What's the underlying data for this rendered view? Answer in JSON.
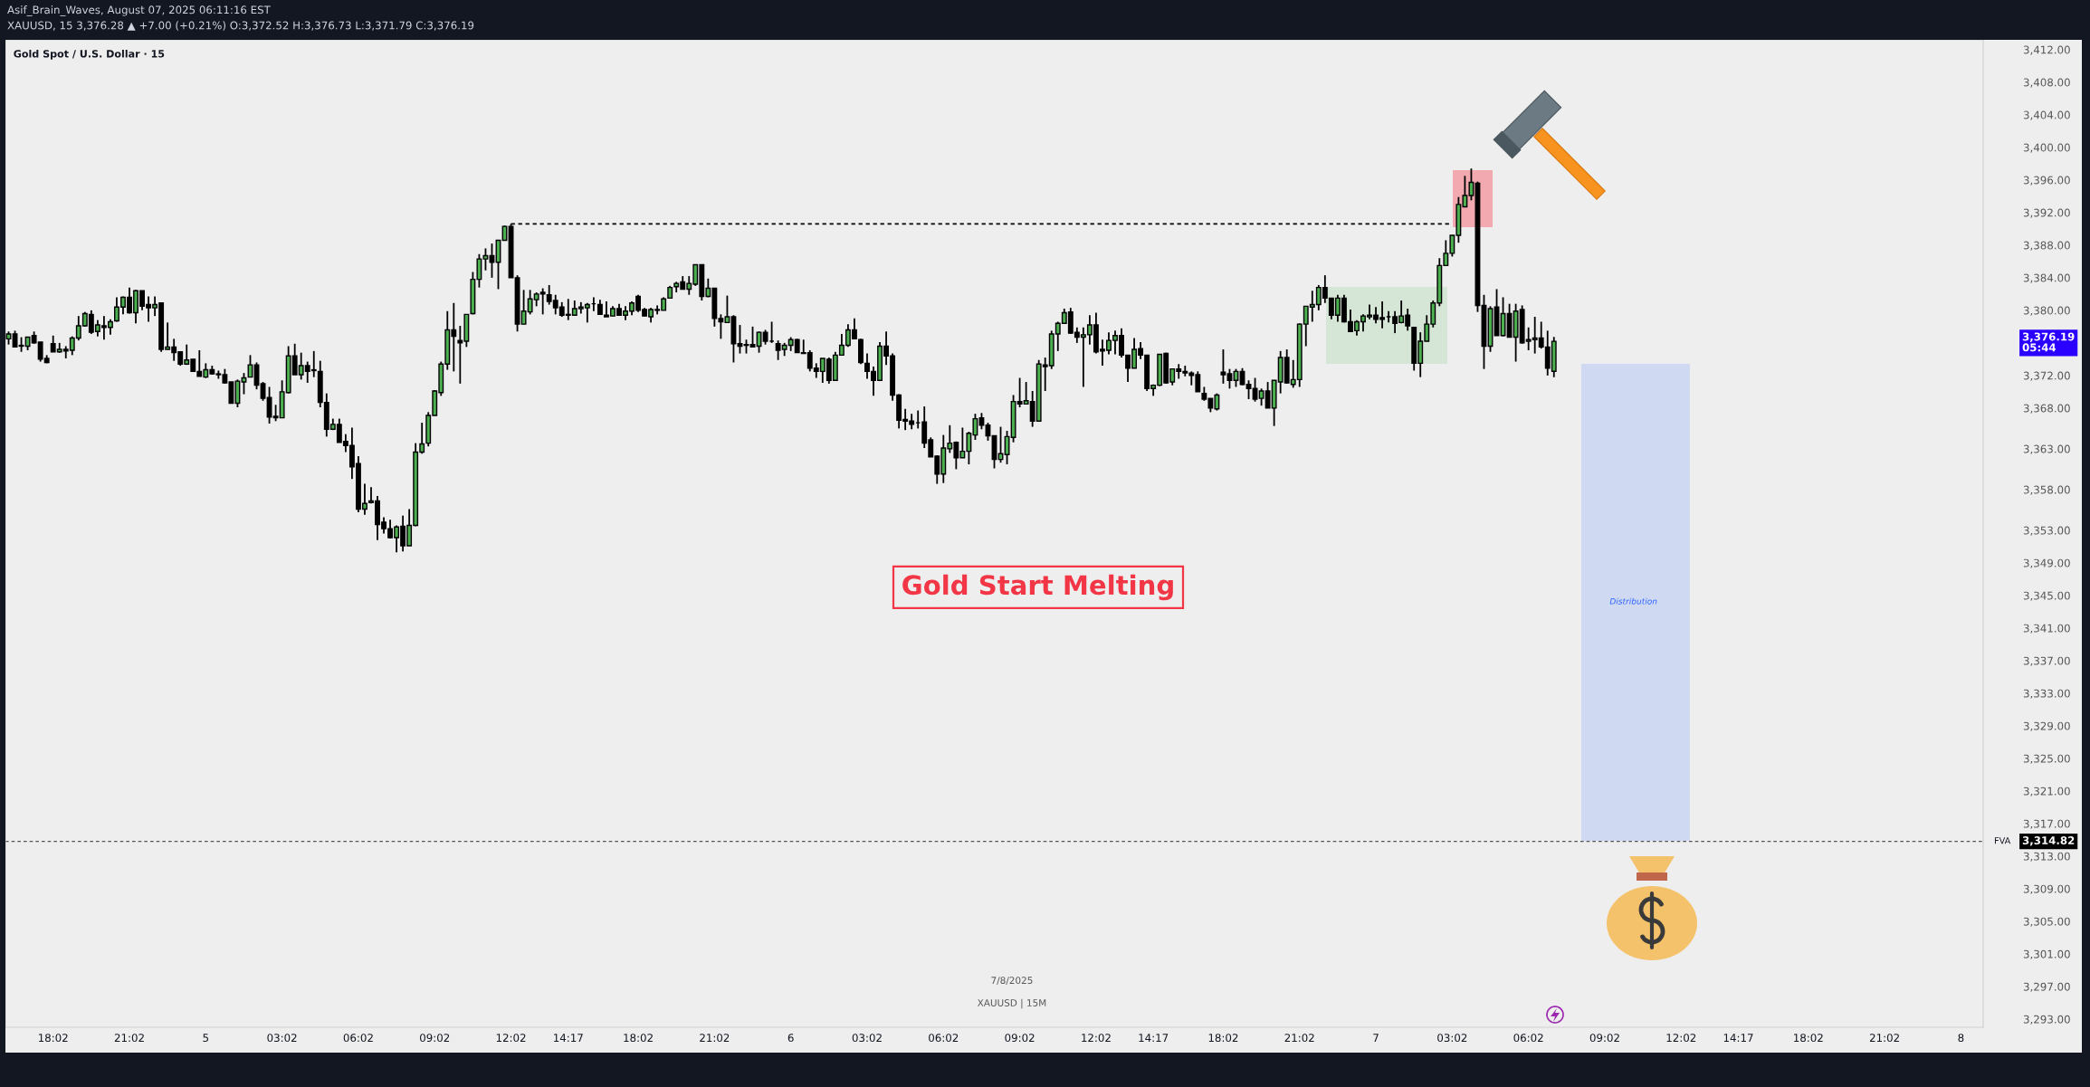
{
  "chart_data": {
    "type": "candlestick",
    "title": "Asif_Brain_Waves, August 07, 2025 06:11:16 EST",
    "subtitle": "XAUUSD, 15 3,376.28 ▲ +7.00 (+0.21%) O:3,372.52 H:3,376.73 L:3,371.79 C:3,376.19",
    "annotations": [
      "Gold Spot / U.S. Dollar · 15",
      "Gold Start Melting",
      "Distribution",
      "7/8/2025",
      "XAUUSD | 15M",
      "3,376.19\n05:44",
      "3,314.82"
    ],
    "categories": [
      null,
      null,
      null,
      null,
      null,
      null,
      null,
      "18:02",
      null,
      null,
      null,
      null,
      null,
      null,
      null,
      null,
      null,
      null,
      null,
      "21:02",
      null,
      null,
      null,
      null,
      null,
      null,
      null,
      null,
      null,
      null,
      null,
      "5",
      null,
      null,
      null,
      null,
      null,
      null,
      null,
      null,
      null,
      null,
      null,
      "03:02",
      null,
      null,
      null,
      null,
      null,
      null,
      null,
      null,
      null,
      null,
      null,
      "06:02",
      null,
      null,
      null,
      null,
      null,
      null,
      null,
      null,
      null,
      null,
      null,
      "09:02",
      null,
      null,
      null,
      null,
      null,
      null,
      null,
      null,
      null,
      null,
      null,
      "12:02",
      null,
      null,
      null,
      null,
      null,
      null,
      null,
      null,
      "14:17",
      null,
      null,
      null,
      null,
      null,
      null,
      null,
      null,
      null,
      null,
      "18:02",
      null,
      null,
      null,
      null,
      null,
      null,
      null,
      null,
      null,
      null,
      null,
      "21:02",
      null,
      null,
      null,
      null,
      null,
      null,
      null,
      null,
      null,
      null,
      null,
      "6",
      null,
      null,
      null,
      null,
      null,
      null,
      null,
      null,
      null,
      null,
      null,
      "03:02",
      null,
      null,
      null,
      null,
      null,
      null,
      null,
      null,
      null,
      null,
      null,
      "06:02",
      null,
      null,
      null,
      null,
      null,
      null,
      null,
      null,
      null,
      null,
      null,
      "09:02",
      null,
      null,
      null,
      null,
      null,
      null,
      null,
      null,
      null,
      null,
      null,
      "12:02",
      null,
      null,
      null,
      null,
      null,
      null,
      null,
      null,
      "14:17",
      null,
      null,
      null,
      null,
      null,
      null,
      null,
      null,
      null,
      null,
      "18:02",
      null,
      null,
      null,
      null,
      null,
      null,
      null,
      null,
      null,
      null,
      null,
      "21:02",
      null,
      null,
      null,
      null,
      null,
      null,
      null,
      null,
      null,
      null,
      null,
      "7",
      null,
      null,
      null,
      null,
      null,
      null,
      null,
      null,
      null,
      null,
      null,
      "03:02",
      null,
      null,
      null,
      null,
      null,
      null,
      null,
      null,
      null,
      null,
      null,
      "06:02",
      null,
      null,
      null,
      null,
      null,
      null,
      null,
      null,
      null,
      null,
      null,
      "09:02",
      null,
      null,
      null,
      null,
      null,
      null,
      null,
      null,
      null,
      null,
      null,
      "12:02",
      null,
      null,
      null,
      null,
      null,
      null,
      null,
      null,
      "14:17",
      null,
      null,
      null,
      null,
      null,
      null,
      null,
      null,
      null,
      null,
      "18:02",
      null,
      null,
      null,
      null,
      null,
      null,
      null,
      null,
      null,
      null,
      null,
      "21:02",
      null,
      null,
      null,
      null,
      null,
      null,
      null,
      null,
      null,
      null,
      null,
      "8",
      null,
      null,
      null
    ],
    "ohlc": [
      [
        3376.5,
        3377.4,
        3375.8,
        3377.1
      ],
      [
        3377.1,
        3377.5,
        3375.5,
        3375.5
      ],
      [
        3375.7,
        3376.7,
        3374.9,
        3375.6
      ],
      [
        3375.6,
        3376.7,
        3375.1,
        3376.7
      ],
      [
        3376.9,
        3377.4,
        3375.9,
        3376.0
      ],
      [
        3376.1,
        3376.1,
        3373.7,
        3374.0
      ],
      [
        3374.1,
        3374.5,
        3373.5,
        3373.6
      ],
      [
        3375.9,
        3376.9,
        3374.9,
        3374.9
      ],
      [
        3374.9,
        3376.0,
        3374.8,
        3375.2
      ],
      [
        3375.2,
        3375.6,
        3374.1,
        3375.0
      ],
      [
        3375.1,
        3376.8,
        3374.5,
        3376.6
      ],
      [
        3376.6,
        3379.3,
        3376.3,
        3378.1
      ],
      [
        3378.1,
        3379.8,
        3378.0,
        3379.6
      ],
      [
        3379.5,
        3380.0,
        3377.1,
        3377.3
      ],
      [
        3377.4,
        3378.8,
        3376.8,
        3378.2
      ],
      [
        3378.1,
        3379.3,
        3376.4,
        3377.9
      ],
      [
        3377.9,
        3378.9,
        3377.0,
        3378.6
      ],
      [
        3378.7,
        3381.6,
        3378.6,
        3380.4
      ],
      [
        3380.4,
        3381.7,
        3379.5,
        3381.6
      ],
      [
        3381.6,
        3382.8,
        3379.6,
        3379.7
      ],
      [
        3379.7,
        3382.5,
        3378.4,
        3382.4
      ],
      [
        3382.4,
        3382.4,
        3380.0,
        3380.5
      ],
      [
        3380.7,
        3381.7,
        3378.6,
        3380.3
      ],
      [
        3380.3,
        3381.7,
        3379.3,
        3380.7
      ],
      [
        3380.9,
        3380.9,
        3374.9,
        3375.2
      ],
      [
        3375.2,
        3378.5,
        3375.2,
        3375.5
      ],
      [
        3375.5,
        3376.5,
        3373.8,
        3374.8
      ],
      [
        3374.9,
        3374.9,
        3373.2,
        3373.4
      ],
      [
        3373.4,
        3375.8,
        3373.3,
        3373.9
      ],
      [
        3374.0,
        3374.0,
        3372.5,
        3372.5
      ],
      [
        3372.5,
        3375.1,
        3371.9,
        3371.9
      ],
      [
        3371.8,
        3373.5,
        3371.7,
        3372.7
      ],
      [
        3372.7,
        3373.2,
        3372.1,
        3372.2
      ],
      [
        3372.2,
        3372.6,
        3371.6,
        3372.1
      ],
      [
        3372.1,
        3372.8,
        3371.0,
        3371.1
      ],
      [
        3371.2,
        3371.2,
        3368.6,
        3368.6
      ],
      [
        3368.6,
        3371.5,
        3368.1,
        3371.3
      ],
      [
        3371.2,
        3372.3,
        3369.7,
        3371.7
      ],
      [
        3371.8,
        3374.5,
        3371.8,
        3373.3
      ],
      [
        3373.3,
        3373.6,
        3370.3,
        3370.8
      ],
      [
        3371.0,
        3371.2,
        3368.9,
        3369.2
      ],
      [
        3369.3,
        3370.6,
        3366.1,
        3366.9
      ],
      [
        3367.0,
        3368.4,
        3366.4,
        3366.8
      ],
      [
        3366.8,
        3371.4,
        3366.8,
        3370.0
      ],
      [
        3369.9,
        3375.6,
        3369.8,
        3374.4
      ],
      [
        3374.4,
        3375.9,
        3372.1,
        3372.1
      ],
      [
        3372.1,
        3374.8,
        3371.5,
        3373.2
      ],
      [
        3373.2,
        3373.7,
        3371.1,
        3372.5
      ],
      [
        3372.7,
        3375.0,
        3371.8,
        3372.6
      ],
      [
        3372.5,
        3373.8,
        3368.1,
        3368.7
      ],
      [
        3368.7,
        3369.8,
        3364.5,
        3365.4
      ],
      [
        3365.4,
        3366.7,
        3365.3,
        3366.0
      ],
      [
        3366.0,
        3366.7,
        3363.8,
        3363.8
      ],
      [
        3363.9,
        3364.8,
        3362.6,
        3363.4
      ],
      [
        3363.4,
        3365.6,
        3359.3,
        3360.8
      ],
      [
        3361.2,
        3362.1,
        3355.2,
        3355.6
      ],
      [
        3355.6,
        3358.7,
        3354.9,
        3356.3
      ],
      [
        3356.4,
        3358.3,
        3356.3,
        3356.6
      ],
      [
        3356.6,
        3357.2,
        3351.8,
        3353.7
      ],
      [
        3354.0,
        3354.6,
        3352.6,
        3353.2
      ],
      [
        3353.2,
        3354.3,
        3352.0,
        3352.1
      ],
      [
        3352.1,
        3353.6,
        3350.3,
        3353.4
      ],
      [
        3353.5,
        3354.8,
        3350.4,
        3351.1
      ],
      [
        3351.1,
        3355.6,
        3351.1,
        3353.6
      ],
      [
        3353.6,
        3363.7,
        3353.5,
        3362.6
      ],
      [
        3362.6,
        3366.2,
        3362.4,
        3363.6
      ],
      [
        3363.7,
        3367.5,
        3363.3,
        3367.1
      ],
      [
        3367.1,
        3370.2,
        3367.1,
        3370.1
      ],
      [
        3369.9,
        3373.7,
        3369.5,
        3373.4
      ],
      [
        3373.4,
        3379.9,
        3372.7,
        3377.6
      ],
      [
        3377.6,
        3380.9,
        3372.5,
        3376.8
      ],
      [
        3376.3,
        3378.1,
        3371.0,
        3376.0
      ],
      [
        3376.2,
        3379.5,
        3375.5,
        3379.5
      ],
      [
        3379.6,
        3384.7,
        3379.5,
        3383.8
      ],
      [
        3383.8,
        3386.9,
        3382.8,
        3386.3
      ],
      [
        3386.3,
        3387.6,
        3384.9,
        3386.7
      ],
      [
        3386.7,
        3388.2,
        3384.0,
        3385.9
      ],
      [
        3385.9,
        3388.6,
        3382.6,
        3388.6
      ],
      [
        3388.6,
        3390.4,
        3388.6,
        3390.3
      ],
      [
        3390.3,
        3390.6,
        3384.0,
        3384.0
      ],
      [
        3384.0,
        3384.3,
        3377.4,
        3378.3
      ],
      [
        3378.3,
        3382.5,
        3378.3,
        3379.9
      ],
      [
        3379.8,
        3382.5,
        3379.5,
        3381.4
      ],
      [
        3381.3,
        3382.2,
        3380.5,
        3382.0
      ],
      [
        3382.2,
        3382.7,
        3379.5,
        3382.0
      ],
      [
        3381.9,
        3383.1,
        3380.7,
        3381.1
      ],
      [
        3381.2,
        3381.9,
        3379.5,
        3380.3
      ],
      [
        3380.4,
        3381.0,
        3379.2,
        3379.4
      ],
      [
        3379.5,
        3381.4,
        3378.8,
        3379.4
      ],
      [
        3379.4,
        3381.2,
        3379.4,
        3380.2
      ],
      [
        3380.2,
        3381.0,
        3379.6,
        3380.4
      ],
      [
        3380.3,
        3380.9,
        3378.5,
        3380.7
      ],
      [
        3380.8,
        3381.6,
        3379.9,
        3380.8
      ],
      [
        3380.7,
        3381.3,
        3379.5,
        3379.5
      ],
      [
        3379.4,
        3381.1,
        3379.2,
        3379.2
      ],
      [
        3379.3,
        3380.5,
        3379.3,
        3380.2
      ],
      [
        3380.2,
        3380.8,
        3379.4,
        3379.4
      ],
      [
        3379.4,
        3380.5,
        3378.8,
        3379.9
      ],
      [
        3379.9,
        3381.1,
        3379.4,
        3380.9
      ],
      [
        3381.7,
        3381.9,
        3379.8,
        3380.0
      ],
      [
        3380.1,
        3380.3,
        3379.3,
        3379.3
      ],
      [
        3379.2,
        3380.3,
        3378.5,
        3380.1
      ],
      [
        3380.0,
        3380.6,
        3379.5,
        3380.1
      ],
      [
        3380.0,
        3381.6,
        3380.0,
        3381.4
      ],
      [
        3381.5,
        3383.0,
        3381.5,
        3382.8
      ],
      [
        3382.9,
        3383.5,
        3382.2,
        3383.3
      ],
      [
        3383.5,
        3384.2,
        3382.6,
        3382.6
      ],
      [
        3382.6,
        3384.2,
        3381.9,
        3383.3
      ],
      [
        3383.2,
        3385.6,
        3383.0,
        3385.6
      ],
      [
        3385.6,
        3385.6,
        3381.2,
        3381.7
      ],
      [
        3381.7,
        3383.9,
        3381.6,
        3382.7
      ],
      [
        3382.7,
        3382.7,
        3378.0,
        3379.0
      ],
      [
        3379.0,
        3379.5,
        3376.5,
        3378.6
      ],
      [
        3378.5,
        3381.8,
        3378.5,
        3379.2
      ],
      [
        3379.2,
        3379.4,
        3373.6,
        3375.9
      ],
      [
        3375.9,
        3378.2,
        3374.7,
        3375.6
      ],
      [
        3375.8,
        3376.4,
        3374.7,
        3375.7
      ],
      [
        3375.8,
        3378.0,
        3375.5,
        3375.5
      ],
      [
        3375.6,
        3377.4,
        3374.8,
        3377.3
      ],
      [
        3377.3,
        3377.6,
        3375.8,
        3376.2
      ],
      [
        3376.2,
        3378.6,
        3376.0,
        3376.2
      ],
      [
        3375.9,
        3376.3,
        3373.9,
        3375.1
      ],
      [
        3375.2,
        3376.0,
        3374.4,
        3375.7
      ],
      [
        3375.7,
        3376.7,
        3375.0,
        3376.4
      ],
      [
        3376.4,
        3376.5,
        3374.8,
        3374.8
      ],
      [
        3374.8,
        3376.4,
        3374.7,
        3374.7
      ],
      [
        3374.8,
        3375.1,
        3372.5,
        3372.9
      ],
      [
        3372.9,
        3373.5,
        3371.7,
        3372.5
      ],
      [
        3372.5,
        3374.1,
        3371.1,
        3374.1
      ],
      [
        3374.0,
        3374.2,
        3371.0,
        3371.4
      ],
      [
        3371.4,
        3374.9,
        3371.4,
        3374.5
      ],
      [
        3374.5,
        3377.1,
        3374.5,
        3375.7
      ],
      [
        3375.7,
        3378.3,
        3375.5,
        3377.6
      ],
      [
        3377.6,
        3379.0,
        3376.5,
        3376.5
      ],
      [
        3376.4,
        3376.5,
        3373.4,
        3373.6
      ],
      [
        3373.5,
        3374.7,
        3371.6,
        3372.5
      ],
      [
        3372.5,
        3373.1,
        3369.5,
        3371.4
      ],
      [
        3371.4,
        3376.1,
        3371.4,
        3375.6
      ],
      [
        3375.6,
        3377.4,
        3373.3,
        3374.4
      ],
      [
        3374.4,
        3374.7,
        3368.9,
        3369.6
      ],
      [
        3369.6,
        3369.7,
        3365.5,
        3366.5
      ],
      [
        3366.6,
        3367.9,
        3365.3,
        3366.4
      ],
      [
        3366.4,
        3367.3,
        3365.4,
        3366.0
      ],
      [
        3366.2,
        3367.7,
        3365.5,
        3366.2
      ],
      [
        3366.3,
        3368.2,
        3363.1,
        3363.7
      ],
      [
        3364.1,
        3364.4,
        3362.0,
        3362.0
      ],
      [
        3362.1,
        3362.2,
        3358.7,
        3359.9
      ],
      [
        3359.9,
        3364.7,
        3358.8,
        3363.1
      ],
      [
        3363.0,
        3365.9,
        3362.5,
        3363.7
      ],
      [
        3363.8,
        3363.9,
        3360.5,
        3361.9
      ],
      [
        3361.9,
        3365.6,
        3361.9,
        3362.7
      ],
      [
        3362.7,
        3365.1,
        3361.1,
        3364.9
      ],
      [
        3364.7,
        3367.3,
        3364.1,
        3366.7
      ],
      [
        3366.8,
        3367.4,
        3365.4,
        3365.9
      ],
      [
        3365.9,
        3366.2,
        3364.0,
        3364.6
      ],
      [
        3364.6,
        3364.6,
        3360.6,
        3361.7
      ],
      [
        3361.7,
        3365.7,
        3361.3,
        3362.4
      ],
      [
        3362.3,
        3365.2,
        3361.1,
        3364.5
      ],
      [
        3364.4,
        3369.6,
        3363.8,
        3368.8
      ],
      [
        3368.8,
        3371.7,
        3368.1,
        3368.5
      ],
      [
        3368.5,
        3371.2,
        3368.5,
        3368.9
      ],
      [
        3368.8,
        3370.1,
        3365.7,
        3366.4
      ],
      [
        3366.4,
        3373.9,
        3366.4,
        3373.4
      ],
      [
        3373.3,
        3374.2,
        3370.1,
        3373.1
      ],
      [
        3373.2,
        3377.5,
        3372.8,
        3377.1
      ],
      [
        3377.1,
        3378.6,
        3375.0,
        3378.4
      ],
      [
        3378.4,
        3380.2,
        3378.4,
        3379.7
      ],
      [
        3379.8,
        3380.3,
        3377.1,
        3377.2
      ],
      [
        3377.3,
        3377.9,
        3376.0,
        3376.7
      ],
      [
        3376.7,
        3377.9,
        3370.6,
        3377.0
      ],
      [
        3377.0,
        3379.4,
        3375.8,
        3378.2
      ],
      [
        3378.2,
        3379.7,
        3374.7,
        3374.9
      ],
      [
        3375.2,
        3376.4,
        3373.2,
        3375.0
      ],
      [
        3375.1,
        3377.3,
        3374.6,
        3376.3
      ],
      [
        3376.3,
        3377.5,
        3374.6,
        3376.9
      ],
      [
        3376.9,
        3377.8,
        3374.2,
        3374.5
      ],
      [
        3374.5,
        3374.5,
        3371.2,
        3372.9
      ],
      [
        3372.9,
        3376.6,
        3372.9,
        3375.2
      ],
      [
        3375.3,
        3376.1,
        3374.0,
        3374.5
      ],
      [
        3374.5,
        3374.5,
        3370.1,
        3370.4
      ],
      [
        3370.4,
        3370.9,
        3369.5,
        3370.8
      ],
      [
        3370.8,
        3374.6,
        3370.7,
        3374.6
      ],
      [
        3374.7,
        3374.8,
        3371.0,
        3371.1
      ],
      [
        3371.2,
        3372.8,
        3370.8,
        3372.8
      ],
      [
        3372.8,
        3373.4,
        3371.6,
        3372.5
      ],
      [
        3372.5,
        3373.2,
        3371.9,
        3372.3
      ],
      [
        3372.3,
        3372.5,
        3370.8,
        3372.0
      ],
      [
        3372.1,
        3372.5,
        3370.0,
        3370.0
      ],
      [
        3369.8,
        3370.6,
        3368.9,
        3369.1
      ],
      [
        3369.2,
        3369.2,
        3367.5,
        3368.0
      ],
      [
        3367.9,
        3369.8,
        3367.7,
        3369.6
      ],
      [
        3372.4,
        3375.2,
        3371.0,
        3372.1
      ],
      [
        3372.2,
        3372.8,
        3370.4,
        3371.4
      ],
      [
        3371.4,
        3372.8,
        3370.6,
        3372.5
      ],
      [
        3372.5,
        3372.9,
        3370.8,
        3370.9
      ],
      [
        3370.9,
        3371.4,
        3369.1,
        3370.4
      ],
      [
        3370.4,
        3371.7,
        3368.8,
        3369.1
      ],
      [
        3369.2,
        3370.4,
        3368.3,
        3370.1
      ],
      [
        3370.1,
        3371.2,
        3368.0,
        3368.0
      ],
      [
        3368.0,
        3371.4,
        3365.8,
        3371.4
      ],
      [
        3371.2,
        3375.0,
        3369.8,
        3374.2
      ],
      [
        3374.2,
        3375.2,
        3371.0,
        3371.1
      ],
      [
        3370.9,
        3373.9,
        3370.5,
        3371.5
      ],
      [
        3371.5,
        3378.4,
        3370.6,
        3378.3
      ],
      [
        3378.3,
        3380.5,
        3375.6,
        3380.5
      ],
      [
        3380.4,
        3382.4,
        3378.6,
        3380.7
      ],
      [
        3380.7,
        3383.1,
        3380.0,
        3382.8
      ],
      [
        3382.8,
        3384.3,
        3380.9,
        3381.5
      ],
      [
        3381.5,
        3381.5,
        3378.9,
        3379.4
      ],
      [
        3379.4,
        3381.9,
        3378.6,
        3381.5
      ],
      [
        3381.5,
        3381.9,
        3378.5,
        3378.6
      ],
      [
        3378.6,
        3380.1,
        3377.4,
        3377.4
      ],
      [
        3377.5,
        3378.8,
        3376.9,
        3378.6
      ],
      [
        3378.6,
        3379.5,
        3377.4,
        3379.3
      ],
      [
        3379.2,
        3380.7,
        3378.9,
        3379.4
      ],
      [
        3379.4,
        3380.4,
        3378.4,
        3378.9
      ],
      [
        3379.1,
        3381.1,
        3377.8,
        3378.9
      ],
      [
        3379.2,
        3379.9,
        3378.5,
        3379.2
      ],
      [
        3379.2,
        3379.9,
        3377.2,
        3378.4
      ],
      [
        3378.5,
        3381.2,
        3378.4,
        3379.3
      ],
      [
        3379.4,
        3380.2,
        3377.5,
        3378.1
      ],
      [
        3377.9,
        3377.9,
        3372.6,
        3373.5
      ],
      [
        3373.5,
        3377.3,
        3371.8,
        3376.2
      ],
      [
        3376.2,
        3379.4,
        3376.2,
        3378.3
      ],
      [
        3378.3,
        3381.2,
        3377.9,
        3380.9
      ],
      [
        3380.9,
        3386.4,
        3380.5,
        3385.5
      ],
      [
        3385.5,
        3388.6,
        3385.5,
        3387.0
      ],
      [
        3387.0,
        3389.2,
        3386.6,
        3389.2
      ],
      [
        3389.2,
        3393.9,
        3388.3,
        3393.0
      ],
      [
        3392.7,
        3396.5,
        3392.7,
        3394.1
      ],
      [
        3394.1,
        3397.4,
        3393.5,
        3395.7
      ],
      [
        3395.6,
        3395.8,
        3379.8,
        3380.6
      ],
      [
        3380.6,
        3381.9,
        3372.8,
        3375.6
      ],
      [
        3375.6,
        3380.5,
        3374.9,
        3380.2
      ],
      [
        3380.4,
        3382.6,
        3376.9,
        3376.9
      ],
      [
        3376.9,
        3381.6,
        3376.8,
        3379.6
      ],
      [
        3379.6,
        3380.8,
        3376.7,
        3376.7
      ],
      [
        3376.7,
        3380.8,
        3373.7,
        3379.9
      ],
      [
        3380.1,
        3380.6,
        3375.9,
        3376.0
      ],
      [
        3376.2,
        3377.9,
        3375.1,
        3376.4
      ],
      [
        3376.4,
        3379.2,
        3374.7,
        3376.6
      ],
      [
        3376.6,
        3378.6,
        3375.3,
        3375.5
      ],
      [
        3375.5,
        3377.5,
        3372.0,
        3372.9
      ],
      [
        3372.52,
        3376.73,
        3371.79,
        3376.19
      ],
      null,
      null,
      null,
      null,
      null,
      null,
      null,
      null,
      null,
      null,
      null,
      null,
      null,
      null,
      null,
      null,
      null,
      null,
      null,
      null,
      null,
      null,
      null,
      null,
      null,
      null,
      null,
      null,
      null,
      null,
      null,
      null,
      null,
      null,
      null,
      null,
      null,
      null,
      null,
      null,
      null,
      null,
      null,
      null,
      null,
      null,
      null,
      null,
      null,
      null,
      null,
      null,
      null,
      null,
      null,
      null,
      null,
      null,
      null,
      null,
      null,
      null,
      null,
      null,
      null,
      null,
      null
    ],
    "colors": [
      "#4caf50",
      "#000000",
      "#000000",
      "#4caf50",
      "#000000",
      "#000000",
      "#000000",
      "#000000",
      "#4caf50",
      "#000000",
      "#4caf50",
      "#4caf50",
      "#4caf50",
      "#000000",
      "#4caf50",
      "#000000",
      "#4caf50",
      "#4caf50",
      "#4caf50",
      "#000000",
      "#4caf50",
      "#000000",
      "#000000",
      "#4caf50",
      "#000000",
      "#4caf50",
      "#000000",
      "#000000",
      "#4caf50",
      "#000000",
      "#000000",
      "#4caf50",
      "#000000",
      "#000000",
      "#000000",
      "#000000",
      "#4caf50",
      "#4caf50",
      "#4caf50",
      "#000000",
      "#000000",
      "#000000",
      "#000000",
      "#4caf50",
      "#4caf50",
      "#000000",
      "#4caf50",
      "#000000",
      "#000000",
      "#000000",
      "#000000",
      "#4caf50",
      "#000000",
      "#000000",
      "#000000",
      "#000000",
      "#4caf50",
      "#4caf50",
      "#000000",
      "#000000",
      "#000000",
      "#4caf50",
      "#000000",
      "#4caf50",
      "#4caf50",
      "#4caf50",
      "#4caf50",
      "#4caf50",
      "#4caf50",
      "#4caf50",
      "#000000",
      "#000000",
      "#4caf50",
      "#4caf50",
      "#4caf50",
      "#4caf50",
      "#000000",
      "#4caf50",
      "#4caf50",
      "#000000",
      "#000000",
      "#4caf50",
      "#4caf50",
      "#4caf50",
      "#000000",
      "#000000",
      "#000000",
      "#000000",
      "#000000",
      "#4caf50",
      "#4caf50",
      "#4caf50",
      "#000000",
      "#000000",
      "#000000",
      "#4caf50",
      "#000000",
      "#4caf50",
      "#4caf50",
      "#000000",
      "#000000",
      "#4caf50",
      "#4caf50",
      "#4caf50",
      "#4caf50",
      "#4caf50",
      "#000000",
      "#4caf50",
      "#4caf50",
      "#000000",
      "#4caf50",
      "#000000",
      "#000000",
      "#4caf50",
      "#000000",
      "#000000",
      "#000000",
      "#000000",
      "#4caf50",
      "#000000",
      "#000000",
      "#000000",
      "#4caf50",
      "#4caf50",
      "#000000",
      "#000000",
      "#000000",
      "#000000",
      "#4caf50",
      "#000000",
      "#4caf50",
      "#4caf50",
      "#4caf50",
      "#000000",
      "#000000",
      "#000000",
      "#000000",
      "#4caf50",
      "#000000",
      "#000000",
      "#000000",
      "#000000",
      "#000000",
      "#000000",
      "#000000",
      "#000000",
      "#000000",
      "#4caf50",
      "#4caf50",
      "#000000",
      "#4caf50",
      "#4caf50",
      "#4caf50",
      "#000000",
      "#000000",
      "#000000",
      "#4caf50",
      "#4caf50",
      "#4caf50",
      "#000000",
      "#4caf50",
      "#000000",
      "#4caf50",
      "#000000",
      "#4caf50",
      "#4caf50",
      "#4caf50",
      "#000000",
      "#000000",
      "#4caf50",
      "#4caf50",
      "#000000",
      "#000000",
      "#4caf50",
      "#4caf50",
      "#000000",
      "#000000",
      "#4caf50",
      "#000000",
      "#000000",
      "#4caf50",
      "#4caf50",
      "#000000",
      "#4caf50",
      "#000000",
      "#000000",
      "#000000",
      "#000000",
      "#000000",
      "#000000",
      "#4caf50",
      "#000000",
      "#000000",
      "#4caf50",
      "#000000",
      "#000000",
      "#000000",
      "#4caf50",
      "#000000",
      "#4caf50",
      "#4caf50",
      "#000000",
      "#4caf50",
      "#4caf50",
      "#4caf50",
      "#4caf50",
      "#4caf50",
      "#000000",
      "#000000",
      "#4caf50",
      "#000000",
      "#000000",
      "#4caf50",
      "#4caf50",
      "#4caf50",
      "#000000",
      "#000000",
      "#000000",
      "#000000",
      "#4caf50",
      "#000000",
      "#000000",
      "#4caf50",
      "#4caf50",
      "#4caf50",
      "#4caf50",
      "#4caf50",
      "#4caf50",
      "#4caf50",
      "#4caf50",
      "#4caf50",
      "#000000",
      "#000000",
      "#4caf50",
      "#000000",
      "#4caf50",
      "#000000",
      "#4caf50",
      "#000000",
      "#4caf50",
      "#4caf50",
      "#000000",
      "#000000",
      "#4caf50",
      null,
      null,
      null,
      null,
      null,
      null,
      null,
      null,
      null,
      null,
      null,
      null,
      null,
      null,
      null,
      null,
      null,
      null,
      null,
      null,
      null,
      null,
      null,
      null,
      null,
      null,
      null,
      null,
      null,
      null,
      null,
      null,
      null,
      null,
      null,
      null,
      null,
      null,
      null,
      null,
      null,
      null,
      null,
      null,
      null,
      null,
      null,
      null,
      null,
      null,
      null,
      null,
      null,
      null,
      null,
      null,
      null,
      null,
      null,
      null,
      null,
      null,
      null,
      null,
      null,
      null,
      null
    ],
    "series": [
      {
        "type": "line",
        "color": "#000000",
        "line_style": "dashed",
        "values": [
          null,
          null,
          null,
          null,
          null,
          null,
          null,
          null,
          null,
          null,
          null,
          null,
          null,
          null,
          null,
          null,
          null,
          null,
          null,
          null,
          null,
          null,
          null,
          null,
          null,
          null,
          null,
          null,
          null,
          null,
          null,
          null,
          null,
          null,
          null,
          null,
          null,
          null,
          null,
          null,
          null,
          null,
          null,
          null,
          null,
          null,
          null,
          null,
          null,
          null,
          null,
          null,
          null,
          null,
          null,
          null,
          null,
          null,
          null,
          null,
          null,
          null,
          null,
          null,
          null,
          null,
          null,
          null,
          null,
          null,
          null,
          null,
          null,
          null,
          null,
          null,
          null,
          null,
          null,
          3390.6,
          3390.6,
          3390.6,
          3390.6,
          3390.6,
          3390.6,
          3390.6,
          3390.6,
          3390.6,
          3390.6,
          3390.6,
          3390.6,
          3390.6,
          3390.6,
          3390.6,
          3390.6,
          3390.6,
          3390.6,
          3390.6,
          3390.6,
          3390.6,
          3390.6,
          3390.6,
          3390.6,
          3390.6,
          3390.6,
          3390.6,
          3390.6,
          3390.6,
          3390.6,
          3390.6,
          3390.6,
          3390.6,
          3390.6,
          3390.6,
          3390.6,
          3390.6,
          3390.6,
          3390.6,
          3390.6,
          3390.6,
          3390.6,
          3390.6,
          3390.6,
          3390.6,
          3390.6,
          3390.6,
          3390.6,
          3390.6,
          3390.6,
          3390.6,
          3390.6,
          3390.6,
          3390.6,
          3390.6,
          3390.6,
          3390.6,
          3390.6,
          3390.6,
          3390.6,
          3390.6,
          3390.6,
          3390.6,
          3390.6,
          3390.6,
          3390.6,
          3390.6,
          3390.6,
          3390.6,
          3390.6,
          3390.6,
          3390.6,
          3390.6,
          3390.6,
          3390.6,
          3390.6,
          3390.6,
          3390.6,
          3390.6,
          3390.6,
          3390.6,
          3390.6,
          3390.6,
          3390.6,
          3390.6,
          3390.6,
          3390.6,
          3390.6,
          3390.6,
          3390.6,
          3390.6,
          3390.6,
          3390.6,
          3390.6,
          3390.6,
          3390.6,
          3390.6,
          3390.6,
          3390.6,
          3390.6,
          3390.6,
          3390.6,
          3390.6,
          3390.6,
          3390.6,
          3390.6,
          3390.6,
          3390.6,
          3390.6,
          3390.6,
          3390.6,
          3390.6,
          3390.6,
          3390.6,
          3390.6,
          3390.6,
          3390.6,
          3390.6,
          3390.6,
          3390.6,
          3390.6,
          3390.6,
          3390.6,
          3390.6,
          3390.6,
          3390.6,
          3390.6,
          3390.6,
          3390.6,
          3390.6,
          3390.6,
          3390.6,
          3390.6,
          3390.6,
          3390.6,
          3390.6,
          3390.6,
          3390.6,
          3390.6,
          3390.6,
          3390.6,
          3390.6,
          3390.6,
          3390.6,
          3390.6,
          3390.6,
          3390.6,
          3390.6,
          3390.6,
          null,
          null,
          null,
          null,
          null,
          null,
          null,
          null,
          null,
          null,
          null,
          null,
          null,
          null,
          null,
          null,
          null,
          null,
          null,
          null,
          null,
          null,
          null,
          null,
          null,
          null,
          null,
          null,
          null,
          null,
          null,
          null,
          null,
          null,
          null,
          null,
          null,
          null,
          null,
          null,
          null,
          null,
          null,
          null,
          null,
          null,
          null,
          null,
          null,
          null,
          null,
          null,
          null,
          null,
          null,
          null,
          null,
          null,
          null,
          null,
          null,
          null,
          null,
          null,
          null,
          null,
          null,
          null,
          null,
          null,
          null,
          null,
          null,
          null,
          null,
          null,
          null,
          null,
          null,
          null,
          null,
          null,
          null
        ]
      }
    ],
    "ref_lines": [
      {
        "axis": "y",
        "value": 3314.82,
        "label": "FVA",
        "color": "#555555",
        "line_style": "dashed"
      }
    ],
    "ylim": [
      3292.0,
      3413.2
    ],
    "yticks": [
      {
        "value": 3412,
        "label": "3,412.00"
      },
      {
        "value": 3408,
        "label": "3,408.00"
      },
      {
        "value": 3404,
        "label": "3,404.00"
      },
      {
        "value": 3400,
        "label": "3,400.00"
      },
      {
        "value": 3396,
        "label": "3,396.00"
      },
      {
        "value": 3392,
        "label": "3,392.00"
      },
      {
        "value": 3388,
        "label": "3,388.00"
      },
      {
        "value": 3384,
        "label": "3,384.00"
      },
      {
        "value": 3380,
        "label": "3,380.00"
      },
      {
        "value": 3372,
        "label": "3,372.00"
      },
      {
        "value": 3368,
        "label": "3,368.00"
      },
      {
        "value": 3363,
        "label": "3,363.00"
      },
      {
        "value": 3358,
        "label": "3,358.00"
      },
      {
        "value": 3353,
        "label": "3,353.00"
      },
      {
        "value": 3349,
        "label": "3,349.00"
      },
      {
        "value": 3345,
        "label": "3,345.00"
      },
      {
        "value": 3341,
        "label": "3,341.00"
      },
      {
        "value": 3337,
        "label": "3,337.00"
      },
      {
        "value": 3333,
        "label": "3,333.00"
      },
      {
        "value": 3329,
        "label": "3,329.00"
      },
      {
        "value": 3325,
        "label": "3,325.00"
      },
      {
        "value": 3321,
        "label": "3,321.00"
      },
      {
        "value": 3317,
        "label": "3,317.00"
      },
      {
        "value": 3313,
        "label": "3,313.00"
      },
      {
        "value": 3309,
        "label": "3,309.00"
      },
      {
        "value": 3305,
        "label": "3,305.00"
      },
      {
        "value": 3301,
        "label": "3,301.00"
      },
      {
        "value": 3297,
        "label": "3,297.00"
      },
      {
        "value": 3293,
        "label": "3,293.00"
      }
    ]
  }
}
